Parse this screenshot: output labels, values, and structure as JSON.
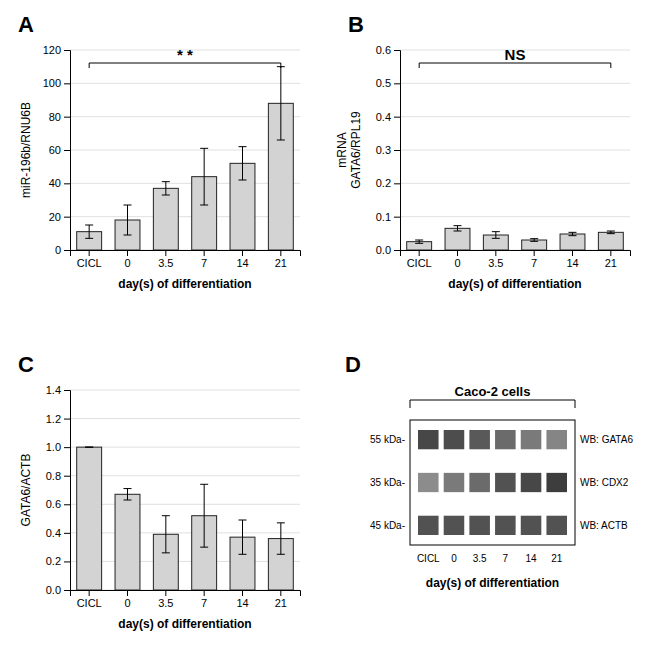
{
  "chart_data": [
    {
      "type": "bar",
      "panel_label": "A",
      "categories": [
        "CICL",
        "0",
        "3.5",
        "7",
        "14",
        "21"
      ],
      "values": [
        11,
        18,
        37,
        44,
        52,
        88
      ],
      "errors": [
        4,
        9,
        4,
        17,
        10,
        22
      ],
      "ylabel": "miR-196b/RNU6B",
      "xlabel": "day(s) of differentiation",
      "ylim": [
        0,
        120
      ],
      "yticks": [
        0,
        20,
        40,
        60,
        80,
        100,
        120
      ],
      "significance": "* *",
      "color": "#d3d3d3",
      "grid": true
    },
    {
      "type": "bar",
      "panel_label": "B",
      "categories": [
        "CICL",
        "0",
        "3.5",
        "7",
        "14",
        "21"
      ],
      "values": [
        0.025,
        0.065,
        0.045,
        0.03,
        0.048,
        0.053
      ],
      "errors": [
        0.005,
        0.008,
        0.01,
        0.004,
        0.005,
        0.004
      ],
      "ylabel": "mRNA\nGATA6/RPL19",
      "xlabel": "day(s) of differentiation",
      "ylim": [
        0,
        0.6
      ],
      "yticks": [
        {
          "value": 0.0,
          "label": "0.0"
        },
        0.1,
        0.2,
        0.3,
        0.4,
        0.5,
        0.6
      ],
      "significance": "NS",
      "color": "#d3d3d3",
      "grid": true
    },
    {
      "type": "bar",
      "panel_label": "C",
      "categories": [
        "CICL",
        "0",
        "3.5",
        "7",
        "14",
        "21"
      ],
      "values": [
        1.0,
        0.67,
        0.39,
        0.52,
        0.37,
        0.36
      ],
      "errors": [
        0.0,
        0.04,
        0.13,
        0.22,
        0.12,
        0.11
      ],
      "ylabel": "GATA6/ACTB",
      "xlabel": "day(s) of differentiation",
      "ylim": [
        0,
        1.4
      ],
      "yticks": [
        {
          "value": 0,
          "label": "0.0"
        },
        0.2,
        0.4,
        0.6,
        0.8,
        {
          "value": 1.0,
          "label": "1.0"
        },
        1.2,
        1.4
      ],
      "color": "#d3d3d3",
      "grid": true
    },
    {
      "type": "heatmap",
      "panel_label": "D",
      "title": "Caco-2 cells",
      "categories": [
        "CICL",
        "0",
        "3.5",
        "7",
        "14",
        "21"
      ],
      "xlabel": "day(s) of differentiation",
      "series": [
        {
          "name": "WB: GATA6",
          "label": "55 kDa-",
          "values": [
            0.28,
            0.3,
            0.35,
            0.42,
            0.48,
            0.52
          ]
        },
        {
          "name": "WB: CDX2",
          "label": "35 kDa-",
          "values": [
            0.55,
            0.48,
            0.42,
            0.32,
            0.28,
            0.24
          ]
        },
        {
          "name": "WB: ACTB",
          "label": "45 kDa-",
          "values": [
            0.32,
            0.32,
            0.32,
            0.32,
            0.32,
            0.32
          ]
        }
      ]
    }
  ]
}
